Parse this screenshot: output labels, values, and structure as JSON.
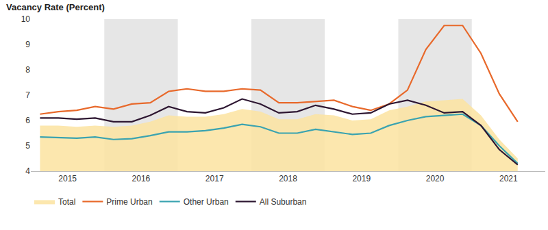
{
  "chart_data": {
    "type": "line",
    "ylabel": "Vacancy Rate (Percent)",
    "categories": [
      "2015",
      null,
      null,
      null,
      "2016",
      null,
      null,
      null,
      "2017",
      null,
      null,
      null,
      "2018",
      null,
      null,
      null,
      "2019",
      null,
      null,
      null,
      "2020",
      null,
      null,
      null,
      "2021",
      null,
      null
    ],
    "series": [
      {
        "name": "Total",
        "type": "area",
        "color": "#fce3a0",
        "values": [
          5.8,
          5.8,
          5.75,
          5.8,
          5.75,
          5.8,
          5.95,
          6.2,
          6.15,
          6.15,
          6.25,
          6.45,
          6.35,
          6.05,
          6.05,
          6.25,
          6.2,
          6.0,
          6.05,
          6.4,
          6.55,
          6.75,
          6.8,
          6.85,
          6.2,
          5.25,
          4.5
        ]
      },
      {
        "name": "Prime Urban",
        "type": "line",
        "color": "#e8692b",
        "values": [
          6.25,
          6.35,
          6.4,
          6.55,
          6.45,
          6.65,
          6.7,
          7.15,
          7.25,
          7.15,
          7.15,
          7.25,
          7.2,
          6.7,
          6.7,
          6.75,
          6.8,
          6.55,
          6.4,
          6.65,
          7.2,
          8.8,
          9.75,
          9.75,
          8.65,
          7.05,
          5.95
        ]
      },
      {
        "name": "Other Urban",
        "type": "line",
        "color": "#3aa3b0",
        "values": [
          5.35,
          5.32,
          5.3,
          5.35,
          5.25,
          5.28,
          5.4,
          5.55,
          5.55,
          5.6,
          5.7,
          5.85,
          5.75,
          5.5,
          5.5,
          5.65,
          5.55,
          5.45,
          5.5,
          5.8,
          6.0,
          6.15,
          6.2,
          6.25,
          5.8,
          5.0,
          4.3
        ]
      },
      {
        "name": "All Suburban",
        "type": "line",
        "color": "#2d1631",
        "values": [
          6.1,
          6.1,
          6.05,
          6.1,
          5.95,
          5.95,
          6.2,
          6.55,
          6.35,
          6.3,
          6.5,
          6.85,
          6.65,
          6.3,
          6.35,
          6.6,
          6.45,
          6.25,
          6.3,
          6.65,
          6.8,
          6.6,
          6.3,
          6.35,
          5.8,
          4.85,
          4.25
        ]
      }
    ],
    "ylim": [
      4,
      10
    ],
    "yticks": [
      4,
      5,
      6,
      7,
      8,
      9,
      10
    ],
    "grid": false,
    "legend": "bottom"
  }
}
